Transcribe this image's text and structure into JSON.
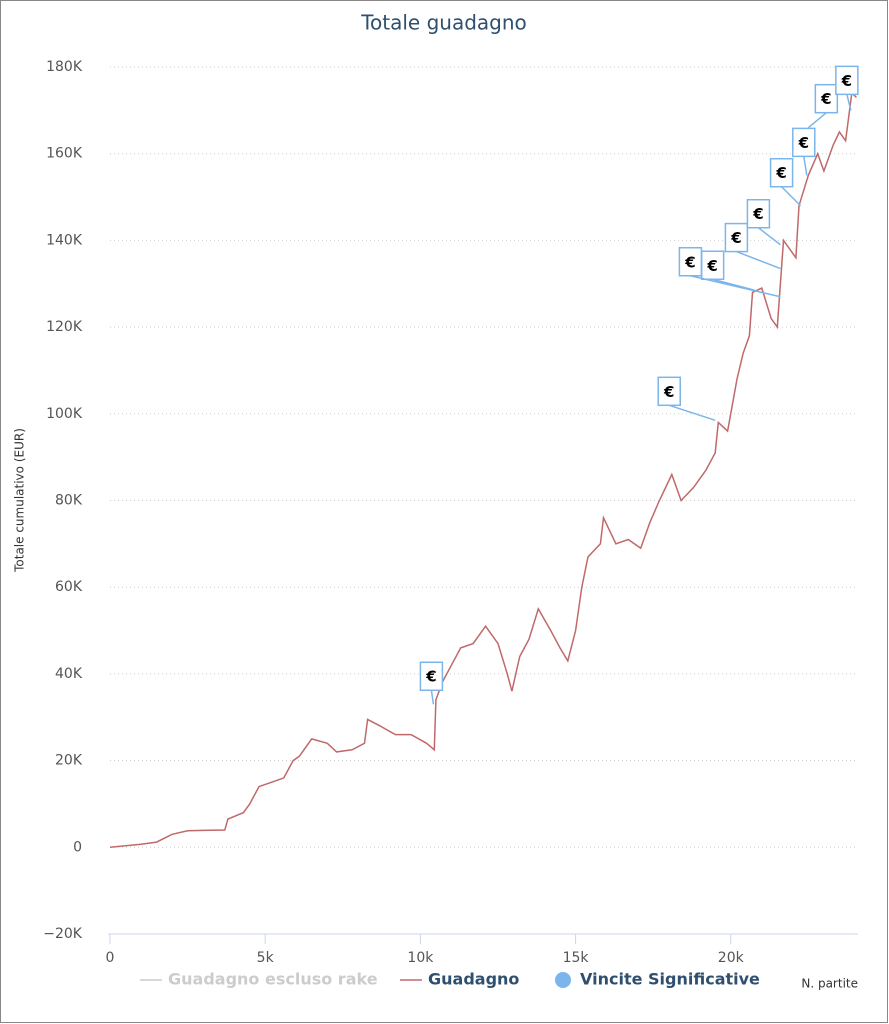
{
  "chart_data": {
    "type": "line",
    "title": "Totale guadagno",
    "xlabel": "N. partite",
    "ylabel": "Totale cumulativo (EUR)",
    "xlim": [
      0,
      24100
    ],
    "ylim": [
      -20000,
      180000
    ],
    "xticks": [
      0,
      {
        "value": 5000,
        "label": "5k"
      },
      {
        "value": 10000,
        "label": "10k"
      },
      {
        "value": 15000,
        "label": "15k"
      },
      {
        "value": 20000,
        "label": "20k"
      }
    ],
    "yticks": [
      {
        "value": -20000,
        "label": "−20K"
      },
      0,
      {
        "value": 20000,
        "label": "20K"
      },
      {
        "value": 40000,
        "label": "40K"
      },
      {
        "value": 60000,
        "label": "60K"
      },
      {
        "value": 80000,
        "label": "80K"
      },
      {
        "value": 100000,
        "label": "100K"
      },
      {
        "value": 120000,
        "label": "120K"
      },
      {
        "value": 140000,
        "label": "140K"
      },
      {
        "value": 160000,
        "label": "160K"
      },
      {
        "value": 180000,
        "label": "180K"
      }
    ],
    "grid": true,
    "series": [
      {
        "name": "Guadagno escluso rake",
        "color": "#cccccc",
        "hidden": true
      },
      {
        "name": "Guadagno",
        "color": "#c0696b",
        "x": [
          0,
          1000,
          1500,
          2000,
          2500,
          3000,
          3700,
          3800,
          4300,
          4500,
          4800,
          5200,
          5600,
          5900,
          6100,
          6500,
          7000,
          7300,
          7800,
          8200,
          8300,
          8700,
          9200,
          9700,
          10200,
          10450,
          10500,
          10700,
          11000,
          11300,
          11700,
          12100,
          12500,
          12800,
          12950,
          13200,
          13500,
          13800,
          14200,
          14500,
          14750,
          15000,
          15200,
          15400,
          15800,
          15900,
          16300,
          16700,
          17100,
          17400,
          17700,
          18100,
          18400,
          18800,
          19200,
          19500,
          19600,
          19900,
          20200,
          20400,
          20600,
          20700,
          21000,
          21300,
          21500,
          21700,
          22100,
          22200,
          22500,
          22800,
          23000,
          23300,
          23500,
          23700,
          23900,
          24050
        ],
        "values": [
          0,
          700,
          1200,
          3000,
          3800,
          3900,
          4000,
          6500,
          8000,
          10000,
          14000,
          15000,
          16000,
          20000,
          21000,
          25000,
          24000,
          22000,
          22500,
          24000,
          29500,
          28000,
          26000,
          26000,
          24000,
          22500,
          34000,
          38000,
          42000,
          46000,
          47000,
          51000,
          47000,
          40000,
          36000,
          44000,
          48000,
          55000,
          50000,
          46000,
          43000,
          50000,
          60000,
          67000,
          70000,
          76000,
          70000,
          71000,
          69000,
          75000,
          80000,
          86000,
          80000,
          83000,
          87000,
          91000,
          98000,
          96000,
          108000,
          114000,
          118000,
          128000,
          129000,
          122000,
          120000,
          140000,
          136000,
          148000,
          155000,
          160000,
          156000,
          162000,
          165000,
          163000,
          174000,
          173000
        ]
      },
      {
        "name": "Vincite Significative",
        "color": "#7cb5ec",
        "label": "€",
        "x": [
          10420,
          19500,
          20770,
          21600,
          21600,
          21600,
          22250,
          22450,
          22500,
          23870
        ],
        "values": [
          33000,
          98500,
          128500,
          127000,
          133500,
          139000,
          148000,
          155000,
          166000,
          170000
        ]
      }
    ]
  }
}
